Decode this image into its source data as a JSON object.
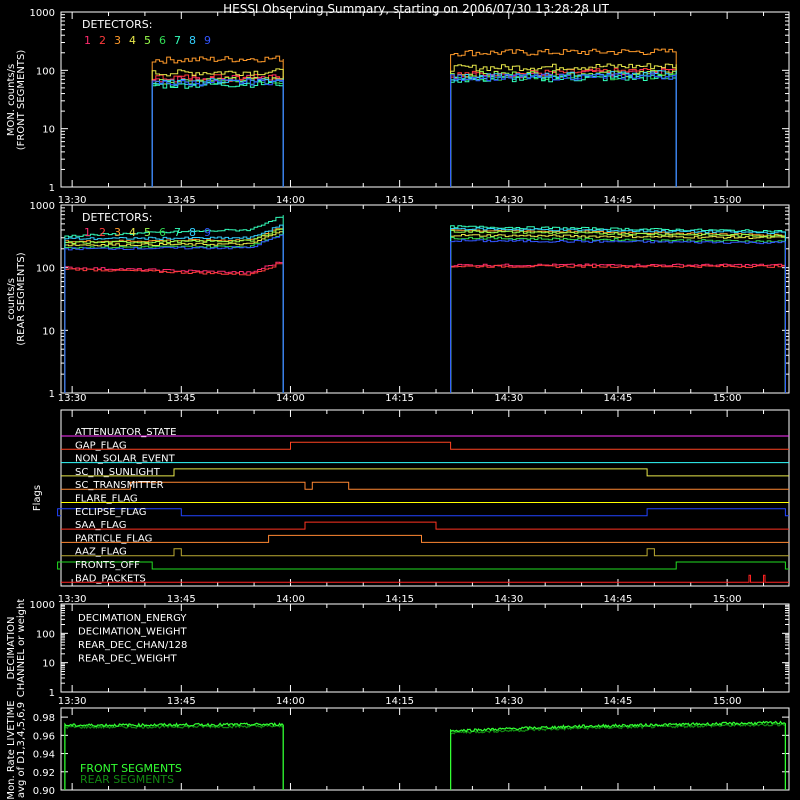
{
  "title": "HESSI Observing Summary, starting on 2006/07/30 13:28:28 UT",
  "colors": {
    "det": [
      "#ff2a6e",
      "#ff3b3b",
      "#ff9a2a",
      "#e8e84a",
      "#9aff4a",
      "#33dd55",
      "#33ffbb",
      "#33d0ff",
      "#3355ff"
    ]
  },
  "x_tick_labels": [
    "13:30",
    "13:45",
    "14:00",
    "14:15",
    "14:30",
    "14:45",
    "15:00"
  ],
  "panels": {
    "front": {
      "ylabel": [
        "MON. counts/s",
        "(FRONT SEGMENTS)"
      ],
      "yticks": [
        "1000",
        "100",
        "10",
        "1"
      ],
      "legend_title": "DETECTORS:",
      "detector_numbers": [
        "1",
        "2",
        "3",
        "4",
        "5",
        "6",
        "7",
        "8",
        "9"
      ]
    },
    "rear": {
      "ylabel": [
        "counts/s",
        "(REAR SEGMENTS)"
      ],
      "yticks": [
        "1000",
        "100",
        "10",
        "1"
      ],
      "legend_title": "DETECTORS:",
      "detector_numbers": [
        "1",
        "2",
        "3",
        "4",
        "5",
        "6",
        "7",
        "8",
        "9"
      ]
    },
    "flags": {
      "ylabel": "Flags",
      "items": [
        {
          "label": "ATTENUATOR_STATE",
          "color": "#ff33ff"
        },
        {
          "label": "GAP_FLAG",
          "color": "#ff4422"
        },
        {
          "label": "NON_SOLAR_EVENT",
          "color": "#33ffff"
        },
        {
          "label": "SC_IN_SUNLIGHT",
          "color": "#e8e84a"
        },
        {
          "label": "SC_TRANSMITTER",
          "color": "#ff8833"
        },
        {
          "label": "FLARE_FLAG",
          "color": "#ffff00"
        },
        {
          "label": "ECLIPSE_FLAG",
          "color": "#2244ff"
        },
        {
          "label": "SAA_FLAG",
          "color": "#ff3322"
        },
        {
          "label": "PARTICLE_FLAG",
          "color": "#ff8833"
        },
        {
          "label": "AAZ_FLAG",
          "color": "#bbaa33"
        },
        {
          "label": "FRONTS_OFF",
          "color": "#22dd22"
        },
        {
          "label": "BAD_PACKETS",
          "color": "#ff2222"
        }
      ]
    },
    "decimation": {
      "ylabel": [
        "DECIMATION",
        "CHANNEL or weight"
      ],
      "yticks": [
        "1000",
        "100",
        "10",
        "1"
      ],
      "legend": [
        {
          "label": "DECIMATION_ENERGY",
          "color": "#33ff55"
        },
        {
          "label": "DECIMATION_WEIGHT",
          "color": "#ff6633"
        },
        {
          "label": "REAR_DEC_CHAN/128",
          "color": "#33ddff"
        },
        {
          "label": "REAR_DEC_WEIGHT",
          "color": "#bbaa44"
        }
      ]
    },
    "livetime": {
      "ylabel": [
        "Mon. Rate LIVETIME",
        "avg of D1,3,4,5,6,9"
      ],
      "yticks": [
        "0.98",
        "0.96",
        "0.94",
        "0.92",
        "0.90"
      ],
      "legend": [
        {
          "label": "FRONT SEGMENTS",
          "color": "#33ff33"
        },
        {
          "label": "REAR SEGMENTS",
          "color": "#118811"
        }
      ]
    }
  },
  "chart_data": [
    {
      "type": "line",
      "title": "HESSI Observing Summary, starting on 2006/07/30 13:28:28 UT",
      "ylabel": "MON. counts/s (FRONT SEGMENTS)",
      "scale": "log",
      "x_range": [
        "13:28",
        "15:08"
      ],
      "ylim": [
        1,
        1000
      ],
      "data_segments": [
        {
          "x": [
            "13:41",
            "13:59"
          ],
          "level_range": [
            50,
            180
          ]
        },
        {
          "x": [
            "14:22",
            "14:53"
          ],
          "level_range": [
            50,
            200
          ]
        }
      ],
      "series": [
        {
          "name": "1",
          "values": [
            70,
            75,
            80,
            95
          ]
        },
        {
          "name": "2",
          "values": [
            75,
            80,
            85,
            100
          ]
        },
        {
          "name": "3",
          "values": [
            150,
            160,
            200,
            210
          ]
        },
        {
          "name": "4",
          "values": [
            90,
            95,
            110,
            120
          ]
        },
        {
          "name": "5",
          "values": [
            65,
            70,
            85,
            90
          ]
        },
        {
          "name": "6",
          "values": [
            60,
            65,
            75,
            80
          ]
        },
        {
          "name": "7",
          "values": [
            55,
            60,
            70,
            75
          ]
        },
        {
          "name": "8",
          "values": [
            60,
            70,
            75,
            90
          ]
        },
        {
          "name": "9",
          "values": [
            60,
            65,
            75,
            80
          ]
        }
      ]
    },
    {
      "type": "line",
      "ylabel": "counts/s (REAR SEGMENTS)",
      "scale": "log",
      "x_range": [
        "13:28",
        "15:08"
      ],
      "ylim": [
        1,
        1000
      ],
      "data_segments": [
        {
          "x": [
            "13:29",
            "13:59"
          ]
        },
        {
          "x": [
            "14:22",
            "15:08"
          ]
        }
      ],
      "series": [
        {
          "name": "1",
          "values": [
            100,
            80,
            110,
            110
          ]
        },
        {
          "name": "2",
          "values": [
            95,
            75,
            105,
            105
          ]
        },
        {
          "name": "3",
          "values": [
            260,
            280,
            400,
            330
          ]
        },
        {
          "name": "4",
          "values": [
            230,
            240,
            330,
            300
          ]
        },
        {
          "name": "5",
          "values": [
            250,
            270,
            380,
            320
          ]
        },
        {
          "name": "6",
          "values": [
            210,
            220,
            300,
            260
          ]
        },
        {
          "name": "7",
          "values": [
            320,
            420,
            450,
            380
          ]
        },
        {
          "name": "8",
          "values": [
            290,
            300,
            420,
            360
          ]
        },
        {
          "name": "9",
          "values": [
            200,
            210,
            270,
            250
          ]
        }
      ]
    },
    {
      "type": "line",
      "ylabel": "Flags",
      "flag_intervals": [
        {
          "label": "ATTENUATOR_STATE",
          "high": []
        },
        {
          "label": "GAP_FLAG",
          "high": [
            [
              "14:00",
              "14:22"
            ]
          ]
        },
        {
          "label": "NON_SOLAR_EVENT",
          "high": []
        },
        {
          "label": "SC_IN_SUNLIGHT",
          "high": [
            [
              "13:44",
              "14:49"
            ]
          ]
        },
        {
          "label": "SC_TRANSMITTER",
          "high": [
            [
              "13:38",
              "14:02"
            ],
            [
              "14:03",
              "14:08"
            ]
          ]
        },
        {
          "label": "FLARE_FLAG",
          "high": []
        },
        {
          "label": "ECLIPSE_FLAG",
          "high": [
            [
              "13:28",
              "13:45"
            ],
            [
              "14:49",
              "15:08"
            ]
          ]
        },
        {
          "label": "SAA_FLAG",
          "high": [
            [
              "14:02",
              "14:20"
            ]
          ]
        },
        {
          "label": "PARTICLE_FLAG",
          "high": [
            [
              "13:57",
              "14:18"
            ]
          ]
        },
        {
          "label": "AAZ_FLAG",
          "high": [
            [
              "13:44",
              "13:45"
            ],
            [
              "14:49",
              "14:50"
            ]
          ]
        },
        {
          "label": "FRONTS_OFF",
          "high": [
            [
              "13:28",
              "13:41"
            ],
            [
              "14:53",
              "15:08"
            ]
          ]
        },
        {
          "label": "BAD_PACKETS",
          "high": [
            [
              "15:03",
              "15:03"
            ],
            [
              "15:05",
              "15:05"
            ]
          ]
        }
      ]
    },
    {
      "type": "line",
      "ylabel": "DECIMATION CHANNEL or weight",
      "scale": "log",
      "ylim": [
        1,
        1000
      ],
      "series": [
        {
          "name": "DECIMATION_ENERGY",
          "values": []
        },
        {
          "name": "DECIMATION_WEIGHT",
          "values": []
        },
        {
          "name": "REAR_DEC_CHAN/128",
          "values": []
        },
        {
          "name": "REAR_DEC_WEIGHT",
          "values": []
        }
      ]
    },
    {
      "type": "line",
      "ylabel": "Mon. Rate LIVETIME avg of D1,3,4,5,6,9",
      "ylim": [
        0.9,
        0.99
      ],
      "series": [
        {
          "name": "FRONT SEGMENTS",
          "x": [
            "13:29",
            "13:59",
            "14:22",
            "14:40",
            "15:08"
          ],
          "values": [
            0.971,
            0.972,
            0.965,
            0.97,
            0.974
          ]
        },
        {
          "name": "REAR SEGMENTS",
          "x": [
            "13:29",
            "13:59",
            "14:22",
            "14:40",
            "15:08"
          ],
          "values": [
            0.969,
            0.97,
            0.963,
            0.968,
            0.972
          ]
        }
      ]
    }
  ]
}
